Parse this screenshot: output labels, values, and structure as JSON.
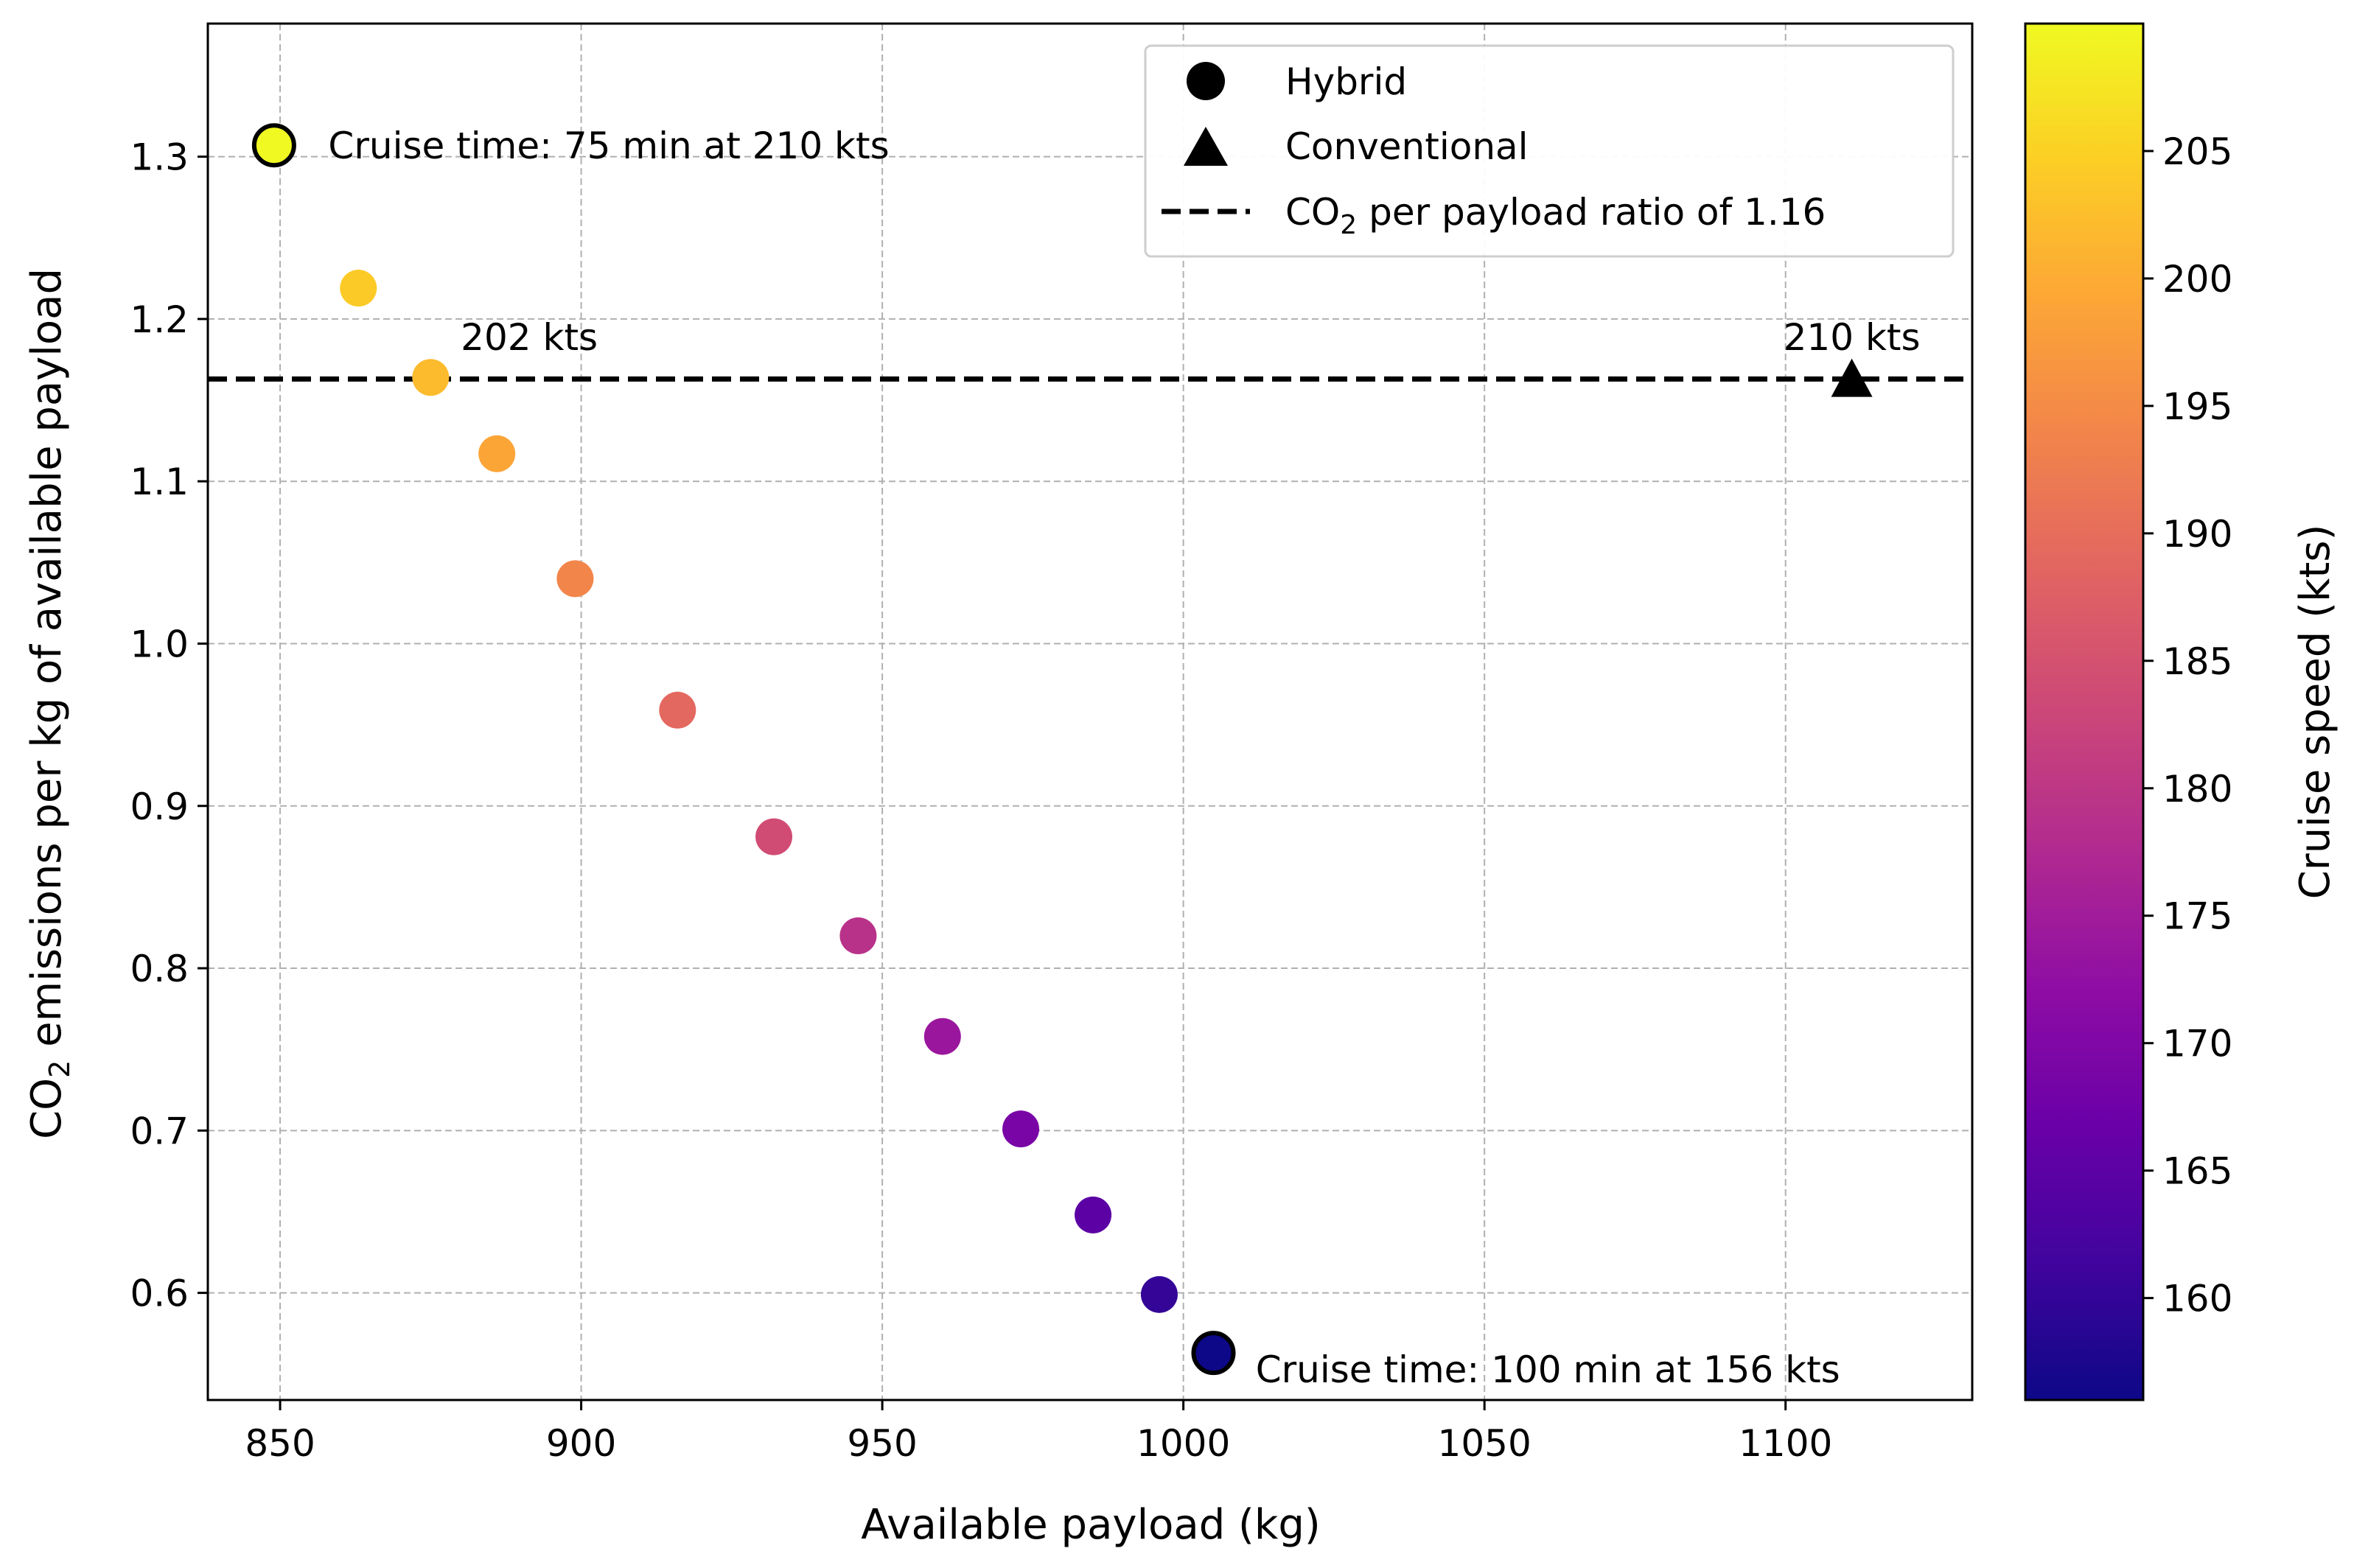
{
  "chart_data": {
    "type": "scatter",
    "xlabel": "Available payload (kg)",
    "ylabel": {
      "pre": "CO",
      "sub": "2",
      "post": " emissions per kg of available payload"
    },
    "xlim": [
      838,
      1131
    ],
    "ylim": [
      0.534,
      1.382
    ],
    "xticks": [
      850,
      900,
      950,
      1000,
      1050,
      1100
    ],
    "yticks": [
      0.6,
      0.7,
      0.8,
      0.9,
      1.0,
      1.1,
      1.2,
      1.3
    ],
    "xtick_labels": [
      "850",
      "900",
      "950",
      "1000",
      "1050",
      "1100"
    ],
    "ytick_labels": [
      "0.6",
      "0.7",
      "0.8",
      "0.9",
      "1.0",
      "1.1",
      "1.2",
      "1.3"
    ],
    "grid": true,
    "series": [
      {
        "name": "Hybrid",
        "marker": "circle",
        "points": [
          {
            "x": 849,
            "y": 1.307,
            "speed": 210,
            "highlight": true
          },
          {
            "x": 863,
            "y": 1.219,
            "speed": 204
          },
          {
            "x": 875,
            "y": 1.164,
            "speed": 202
          },
          {
            "x": 886,
            "y": 1.117,
            "speed": 199
          },
          {
            "x": 899,
            "y": 1.04,
            "speed": 194
          },
          {
            "x": 916,
            "y": 0.959,
            "speed": 189
          },
          {
            "x": 932,
            "y": 0.881,
            "speed": 184
          },
          {
            "x": 946,
            "y": 0.82,
            "speed": 179
          },
          {
            "x": 960,
            "y": 0.758,
            "speed": 174
          },
          {
            "x": 973,
            "y": 0.701,
            "speed": 169
          },
          {
            "x": 985,
            "y": 0.648,
            "speed": 165
          },
          {
            "x": 996,
            "y": 0.599,
            "speed": 160
          },
          {
            "x": 1005,
            "y": 0.563,
            "speed": 156,
            "highlight": true
          }
        ]
      },
      {
        "name": "Conventional",
        "marker": "triangle",
        "points": [
          {
            "x": 1111,
            "y": 1.162,
            "color": "#000000"
          }
        ]
      }
    ],
    "reference_line": {
      "y": 1.163,
      "label_pre": "CO",
      "label_sub": "2",
      "label_post": " per payload ratio of 1.16",
      "style": "dashed",
      "color": "#000000"
    },
    "annotations": [
      {
        "text": "Cruise time: 75 min at 210 kts",
        "x": 858,
        "y": 1.307
      },
      {
        "text": "202 kts",
        "x": 880,
        "y": 1.189
      },
      {
        "text": "210 kts",
        "x": 1111,
        "y": 1.189
      },
      {
        "text": "Cruise time: 100 min at 156 kts",
        "x": 1012,
        "y": 0.553
      }
    ],
    "legend": {
      "position": "top-right"
    },
    "colorbar": {
      "label": "Cruise speed (kts)",
      "range": [
        156,
        210
      ],
      "ticks": [
        160,
        165,
        170,
        175,
        180,
        185,
        190,
        195,
        200,
        205
      ],
      "tick_labels": [
        "160",
        "165",
        "170",
        "175",
        "180",
        "185",
        "190",
        "195",
        "200",
        "205"
      ],
      "colormap": "plasma",
      "colormap_stops": [
        "#0d0887",
        "#41049d",
        "#6a00a8",
        "#8f0da4",
        "#b12a90",
        "#cc4778",
        "#e16462",
        "#f2844b",
        "#fca636",
        "#fcce25",
        "#f0f921"
      ]
    }
  }
}
